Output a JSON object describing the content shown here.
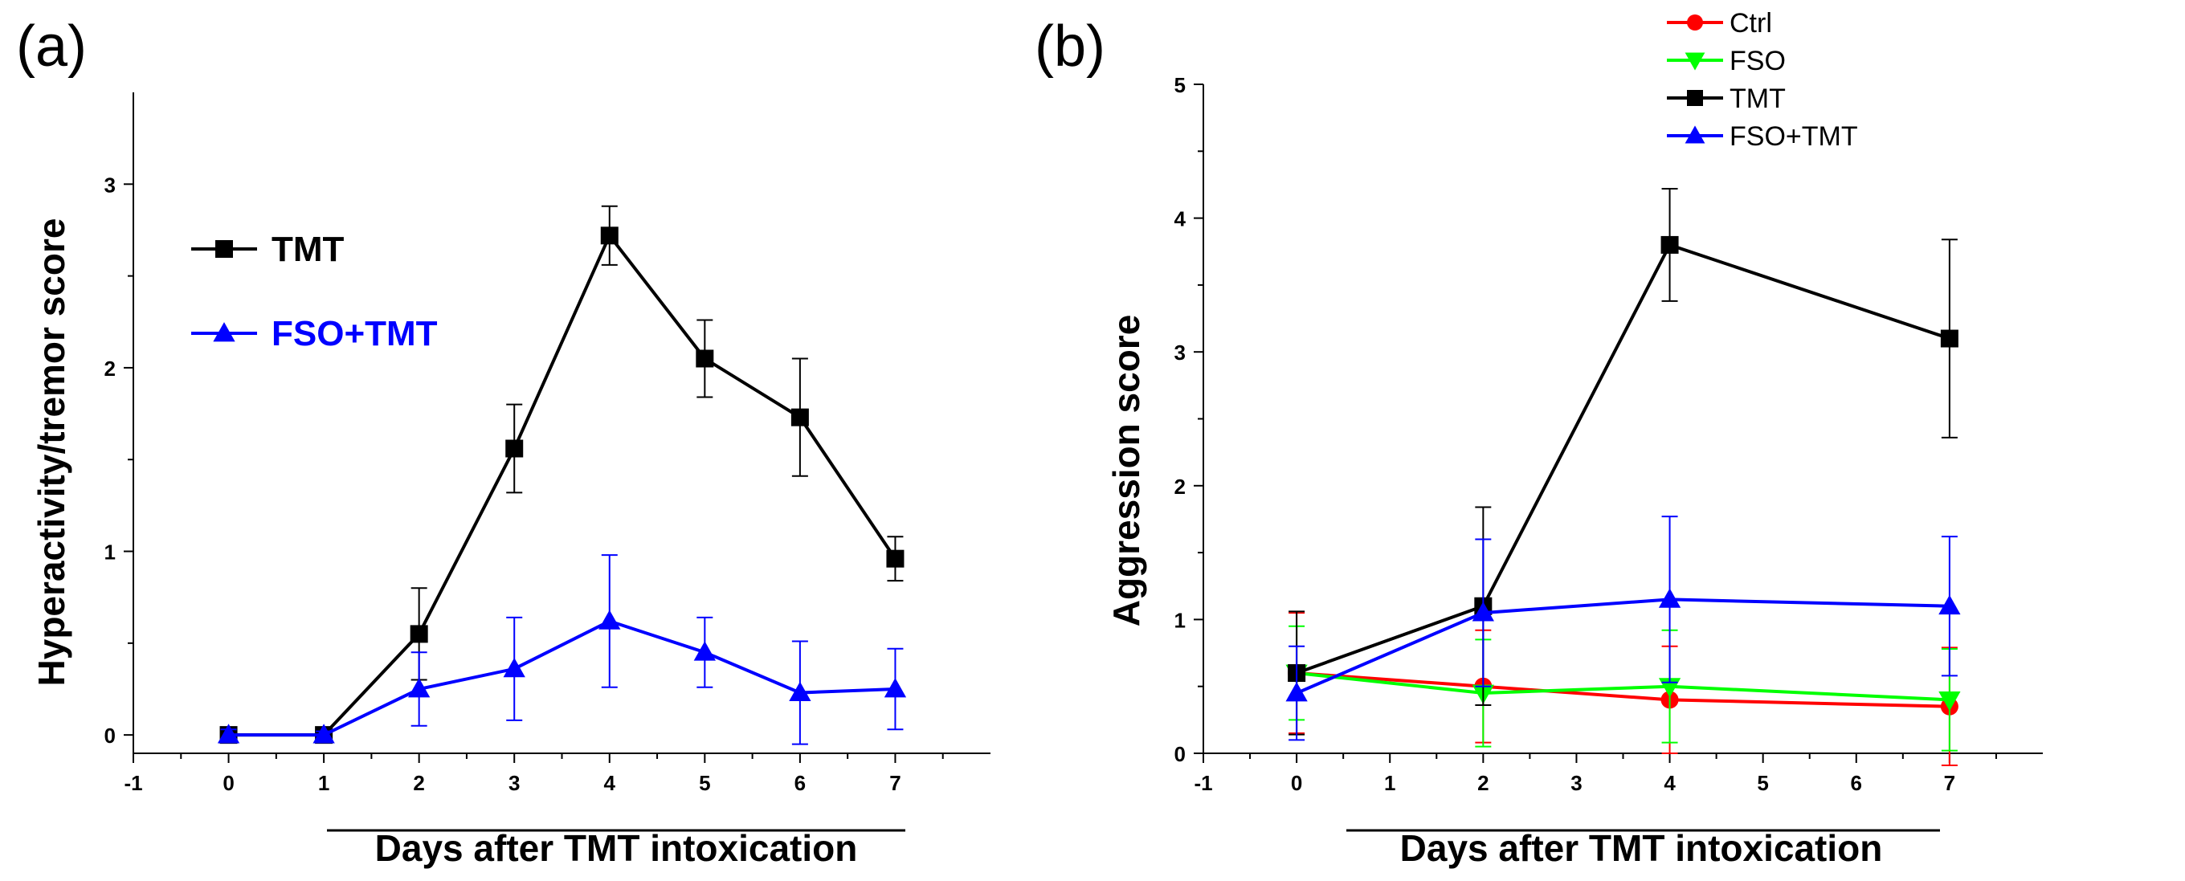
{
  "chart_data": [
    {
      "type": "line",
      "panel_label": "(a)",
      "xlabel": "Days after TMT intoxication",
      "ylabel": "Hyperactivity/tremor score",
      "xlim": [
        -1,
        8
      ],
      "ylim": [
        -0.1,
        3.5
      ],
      "xticks": [
        "-1",
        "0",
        "1",
        "2",
        "3",
        "4",
        "5",
        "6",
        "7"
      ],
      "yticks": [
        "0",
        "1",
        "2",
        "3"
      ],
      "legend_position": "top-left",
      "series": [
        {
          "name": "TMT",
          "color": "#000000",
          "marker": "square",
          "x": [
            0,
            1,
            2,
            3,
            4,
            5,
            6,
            7
          ],
          "y": [
            0,
            0,
            0.55,
            1.56,
            2.72,
            2.05,
            1.73,
            0.96
          ],
          "err": [
            0,
            0,
            0.25,
            0.24,
            0.16,
            0.21,
            0.32,
            0.12
          ]
        },
        {
          "name": "FSO+TMT",
          "color": "#0000ff",
          "marker": "triangle-up",
          "x": [
            0,
            1,
            2,
            3,
            4,
            5,
            6,
            7
          ],
          "y": [
            0,
            0,
            0.25,
            0.36,
            0.62,
            0.45,
            0.23,
            0.25
          ],
          "err": [
            0.03,
            0.02,
            0.2,
            0.28,
            0.36,
            0.19,
            0.28,
            0.22
          ]
        }
      ]
    },
    {
      "type": "line",
      "panel_label": "(b)",
      "xlabel": "Days after TMT intoxication",
      "ylabel": "Aggression score",
      "xlim": [
        -1,
        8
      ],
      "ylim": [
        0,
        5
      ],
      "xticks": [
        "-1",
        "0",
        "1",
        "2",
        "3",
        "4",
        "5",
        "6",
        "7"
      ],
      "yticks": [
        "0",
        "1",
        "2",
        "3",
        "4",
        "5"
      ],
      "legend_position": "top-right",
      "series": [
        {
          "name": "Ctrl",
          "color": "#ff0000",
          "marker": "circle",
          "x": [
            0,
            2,
            4,
            7
          ],
          "y": [
            0.6,
            0.5,
            0.4,
            0.35
          ],
          "err": [
            0.45,
            0.42,
            0.4,
            0.44
          ]
        },
        {
          "name": "FSO",
          "color": "#00ff00",
          "marker": "triangle-down",
          "x": [
            0,
            2,
            4,
            7
          ],
          "y": [
            0.6,
            0.45,
            0.5,
            0.4
          ],
          "err": [
            0.35,
            0.4,
            0.42,
            0.38
          ]
        },
        {
          "name": "TMT",
          "color": "#000000",
          "marker": "square",
          "x": [
            0,
            2,
            4,
            7
          ],
          "y": [
            0.6,
            1.1,
            3.8,
            3.1
          ],
          "err": [
            0.46,
            0.74,
            0.42,
            0.74
          ]
        },
        {
          "name": "FSO+TMT",
          "color": "#0000ff",
          "marker": "triangle-up",
          "x": [
            0,
            2,
            4,
            7
          ],
          "y": [
            0.45,
            1.05,
            1.15,
            1.1
          ],
          "err": [
            0.35,
            0.55,
            0.62,
            0.52
          ]
        }
      ]
    }
  ]
}
